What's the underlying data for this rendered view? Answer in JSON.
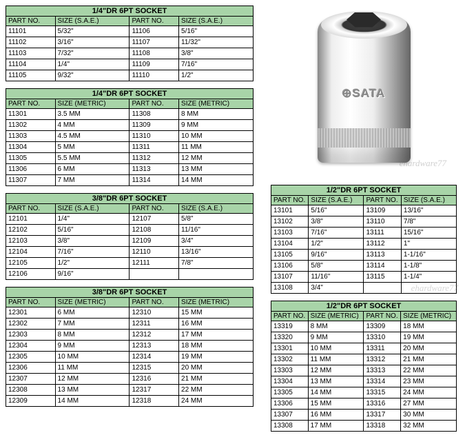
{
  "brand": "⊕SATA",
  "watermark": "ehardware77",
  "tables": [
    {
      "title": "1/4\"DR 6PT SOCKET",
      "col": "left",
      "headers": [
        "PART NO.",
        "SIZE (S.A.E.)",
        "PART NO.",
        "SIZE (S.A.E.)"
      ],
      "rows": [
        [
          "11101",
          "5/32\"",
          "11106",
          "5/16\""
        ],
        [
          "11102",
          "3/16\"",
          "11107",
          "11/32\""
        ],
        [
          "11103",
          "7/32\"",
          "11108",
          "3/8\""
        ],
        [
          "11104",
          "1/4\"",
          "11109",
          "7/16\""
        ],
        [
          "11105",
          "9/32\"",
          "11110",
          "1/2\""
        ]
      ]
    },
    {
      "title": "1/4\"DR 6PT SOCKET",
      "col": "left",
      "headers": [
        "PART NO.",
        "SIZE (METRIC)",
        "PART NO.",
        "SIZE (METRIC)"
      ],
      "rows": [
        [
          "11301",
          "3.5 MM",
          "11308",
          "8 MM"
        ],
        [
          "11302",
          "4 MM",
          "11309",
          "9 MM"
        ],
        [
          "11303",
          "4.5 MM",
          "11310",
          "10 MM"
        ],
        [
          "11304",
          "5 MM",
          "11311",
          "11 MM"
        ],
        [
          "11305",
          "5.5 MM",
          "11312",
          "12 MM"
        ],
        [
          "11306",
          "6 MM",
          "11313",
          "13 MM"
        ],
        [
          "11307",
          "7 MM",
          "11314",
          "14 MM"
        ]
      ]
    },
    {
      "title": "3/8\"DR 6PT SOCKET",
      "col": "left",
      "headers": [
        "PART NO.",
        "SIZE (S.A.E.)",
        "PART NO.",
        "SIZE (S.A.E.)"
      ],
      "rows": [
        [
          "12101",
          "1/4\"",
          "12107",
          "5/8\""
        ],
        [
          "12102",
          "5/16\"",
          "12108",
          "11/16\""
        ],
        [
          "12103",
          "3/8\"",
          "12109",
          "3/4\""
        ],
        [
          "12104",
          "7/16\"",
          "12110",
          "13/16\""
        ],
        [
          "12105",
          "1/2\"",
          "12111",
          "7/8\""
        ],
        [
          "12106",
          "9/16\"",
          "",
          ""
        ]
      ]
    },
    {
      "title": "3/8\"DR 6PT SOCKET",
      "col": "left",
      "headers": [
        "PART NO.",
        "SIZE (METRIC)",
        "PART NO.",
        "SIZE (METRIC)"
      ],
      "rows": [
        [
          "12301",
          "6 MM",
          "12310",
          "15 MM"
        ],
        [
          "12302",
          "7 MM",
          "12311",
          "16 MM"
        ],
        [
          "12303",
          "8 MM",
          "12312",
          "17 MM"
        ],
        [
          "12304",
          "9 MM",
          "12313",
          "18 MM"
        ],
        [
          "12305",
          "10 MM",
          "12314",
          "19 MM"
        ],
        [
          "12306",
          "11 MM",
          "12315",
          "20 MM"
        ],
        [
          "12307",
          "12 MM",
          "12316",
          "21 MM"
        ],
        [
          "12308",
          "13 MM",
          "12317",
          "22 MM"
        ],
        [
          "12309",
          "14 MM",
          "12318",
          "24 MM"
        ]
      ]
    },
    {
      "title": "1/2\"DR 6PT SOCKET",
      "col": "right",
      "headers": [
        "PART NO.",
        "SIZE (S.A.E.)",
        "PART NO.",
        "SIZE (S.A.E.)"
      ],
      "rows": [
        [
          "13101",
          "5/16\"",
          "13109",
          "13/16\""
        ],
        [
          "13102",
          "3/8\"",
          "13110",
          "7/8\""
        ],
        [
          "13103",
          "7/16\"",
          "13111",
          "15/16\""
        ],
        [
          "13104",
          "1/2\"",
          "13112",
          "1\""
        ],
        [
          "13105",
          "9/16\"",
          "13113",
          "1-1/16\""
        ],
        [
          "13106",
          "5/8\"",
          "13114",
          "1-1/8\""
        ],
        [
          "13107",
          "11/16\"",
          "13115",
          "1-1/4\""
        ],
        [
          "13108",
          "3/4\"",
          "",
          ""
        ]
      ]
    },
    {
      "title": "1/2\"DR 6PT SOCKET",
      "col": "right",
      "headers": [
        "PART NO.",
        "SIZE (METRIC)",
        "PART NO.",
        "SIZE (METRIC)"
      ],
      "rows": [
        [
          "13319",
          "8 MM",
          "13309",
          "18 MM"
        ],
        [
          "13320",
          "9 MM",
          "13310",
          "19 MM"
        ],
        [
          "13301",
          "10 MM",
          "13311",
          "20 MM"
        ],
        [
          "13302",
          "11 MM",
          "13312",
          "21 MM"
        ],
        [
          "13303",
          "12 MM",
          "13313",
          "22 MM"
        ],
        [
          "13304",
          "13 MM",
          "13314",
          "23 MM"
        ],
        [
          "13305",
          "14 MM",
          "13315",
          "24 MM"
        ],
        [
          "13306",
          "15 MM",
          "13316",
          "27 MM"
        ],
        [
          "13307",
          "16 MM",
          "13317",
          "30 MM"
        ],
        [
          "13308",
          "17 MM",
          "13318",
          "32 MM"
        ]
      ]
    }
  ]
}
